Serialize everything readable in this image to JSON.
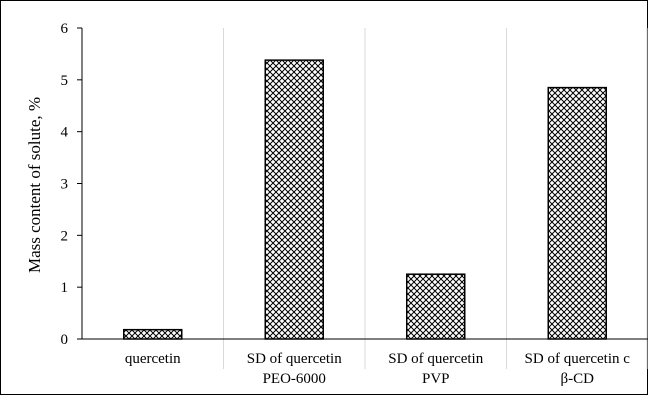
{
  "chart_data": {
    "type": "bar",
    "title": "",
    "xlabel": "",
    "ylabel": "Mass content of solute, %",
    "ylim": [
      0,
      6
    ],
    "yticks": [
      "0",
      "1",
      "2",
      "3",
      "4",
      "5",
      "6"
    ],
    "categories": [
      [
        "quercetin"
      ],
      [
        "SD of quercetin",
        "PEO-6000"
      ],
      [
        "SD of quercetin",
        "PVP"
      ],
      [
        "SD of quercetin c",
        "β-CD"
      ]
    ],
    "values": [
      0.18,
      5.38,
      1.25,
      4.85
    ],
    "grid": "vertical category separators",
    "bar_pattern": "crosshatch",
    "colors": {
      "bar_fill": "#ffffff",
      "bar_pattern": "#000000",
      "grid": "#d9d9d9",
      "axis": "#000000"
    }
  }
}
